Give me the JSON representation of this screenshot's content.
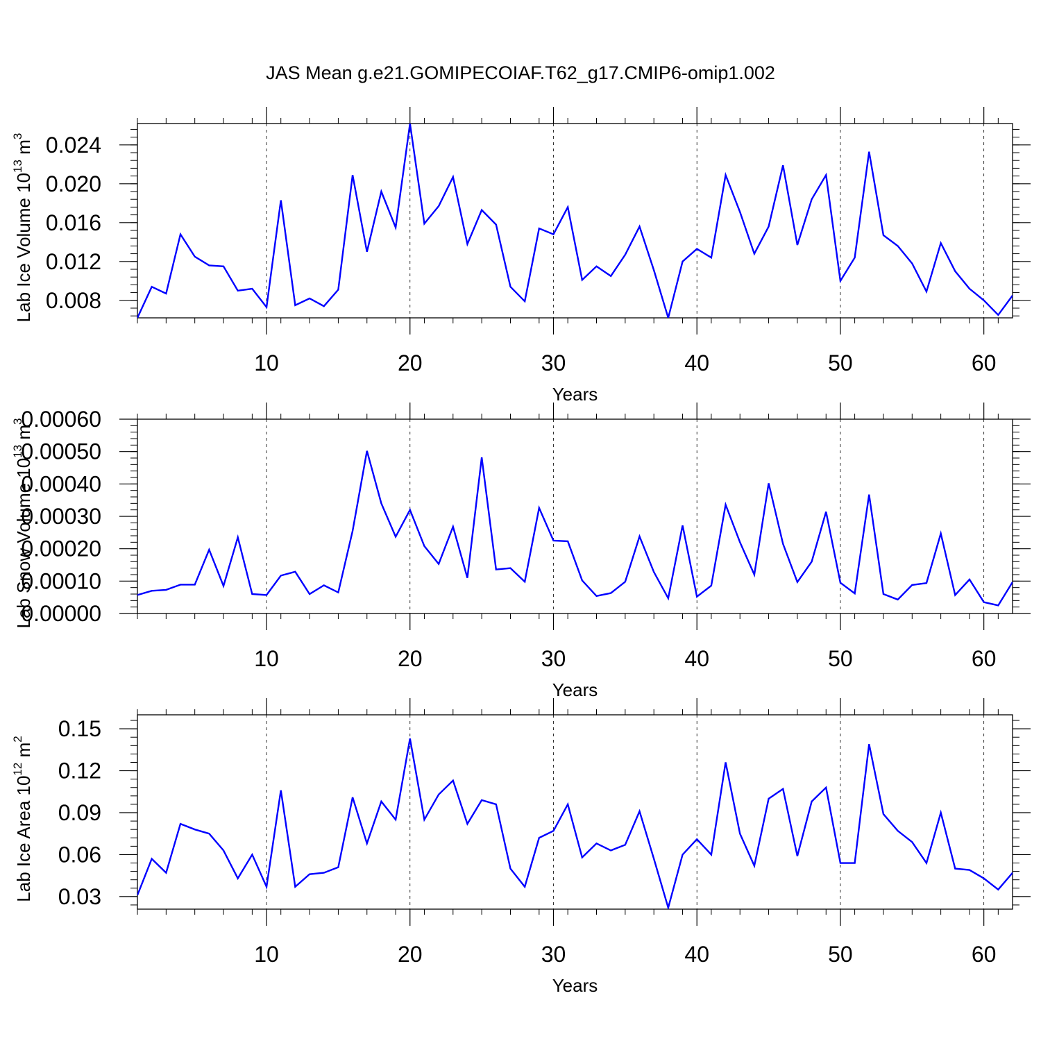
{
  "title": "JAS Mean g.e21.GOMIPECOIAF.T62_g17.CMIP6-omip1.002",
  "line_color": "#0000ff",
  "chart_data": [
    {
      "type": "line",
      "title": "JAS Mean g.e21.GOMIPECOIAF.T62_g17.CMIP6-omip1.002",
      "xlabel": "Years",
      "ylabel": {
        "main": "Lab Ice Volume 10",
        "exp": "13",
        "unit": " m",
        "unit_exp": "3"
      },
      "xlim": [
        1,
        62
      ],
      "ylim": [
        0.0062,
        0.0262
      ],
      "xticks": [
        10,
        20,
        30,
        40,
        50,
        60
      ],
      "xtick_labels": [
        "10",
        "20",
        "30",
        "40",
        "50",
        "60"
      ],
      "yticks": [
        0.008,
        0.012,
        0.016,
        0.02,
        0.024
      ],
      "ytick_labels": [
        "0.008",
        "0.012",
        "0.016",
        "0.020",
        "0.024"
      ],
      "yminor_step": 0.0008,
      "grid": "vertical dashed at major x ticks",
      "x": [
        1,
        2,
        3,
        4,
        5,
        6,
        7,
        8,
        9,
        10,
        11,
        12,
        13,
        14,
        15,
        16,
        17,
        18,
        19,
        20,
        21,
        22,
        23,
        24,
        25,
        26,
        27,
        28,
        29,
        30,
        31,
        32,
        33,
        34,
        35,
        36,
        37,
        38,
        39,
        40,
        41,
        42,
        43,
        44,
        45,
        46,
        47,
        48,
        49,
        50,
        51,
        52,
        53,
        54,
        55,
        56,
        57,
        58,
        59,
        60,
        61,
        62
      ],
      "series": [
        {
          "name": "Lab Ice Volume",
          "values": [
            0.0062,
            0.0094,
            0.0087,
            0.0148,
            0.0125,
            0.0116,
            0.0115,
            0.009,
            0.0092,
            0.0073,
            0.0183,
            0.0075,
            0.0082,
            0.0074,
            0.0091,
            0.0209,
            0.013,
            0.0192,
            0.0155,
            0.0262,
            0.0159,
            0.0177,
            0.0207,
            0.0138,
            0.0173,
            0.0158,
            0.0094,
            0.0079,
            0.0154,
            0.0148,
            0.0176,
            0.0101,
            0.0115,
            0.0105,
            0.0127,
            0.0156,
            0.0111,
            0.0062,
            0.012,
            0.0133,
            0.0124,
            0.0209,
            0.0171,
            0.0128,
            0.0156,
            0.0219,
            0.0137,
            0.0184,
            0.0209,
            0.01,
            0.0124,
            0.0233,
            0.0147,
            0.0136,
            0.0118,
            0.0089,
            0.0139,
            0.011,
            0.0092,
            0.008,
            0.0065,
            0.0085
          ]
        }
      ]
    },
    {
      "type": "line",
      "title": "",
      "xlabel": "Years",
      "ylabel": {
        "main": "Lab Snow Volume 10",
        "exp": "13",
        "unit": " m",
        "unit_exp": "3"
      },
      "xlim": [
        1,
        62
      ],
      "ylim": [
        0.0,
        0.0006
      ],
      "xticks": [
        10,
        20,
        30,
        40,
        50,
        60
      ],
      "xtick_labels": [
        "10",
        "20",
        "30",
        "40",
        "50",
        "60"
      ],
      "yticks": [
        0.0,
        0.0001,
        0.0002,
        0.0003,
        0.0004,
        0.0005,
        0.0006
      ],
      "ytick_labels": [
        "0.00000",
        "0.00010",
        "0.00020",
        "0.00030",
        "0.00040",
        "0.00050",
        "0.00060"
      ],
      "yminor_step": 2e-05,
      "grid": "vertical dashed at major x ticks",
      "x": [
        1,
        2,
        3,
        4,
        5,
        6,
        7,
        8,
        9,
        10,
        11,
        12,
        13,
        14,
        15,
        16,
        17,
        18,
        19,
        20,
        21,
        22,
        23,
        24,
        25,
        26,
        27,
        28,
        29,
        30,
        31,
        32,
        33,
        34,
        35,
        36,
        37,
        38,
        39,
        40,
        41,
        42,
        43,
        44,
        45,
        46,
        47,
        48,
        49,
        50,
        51,
        52,
        53,
        54,
        55,
        56,
        57,
        58,
        59,
        60,
        61,
        62
      ],
      "series": [
        {
          "name": "Lab Snow Volume",
          "values": [
            5.7e-05,
            7e-05,
            7.3e-05,
            8.9e-05,
            8.9e-05,
            0.000197,
            8.5e-05,
            0.000235,
            6e-05,
            5.7e-05,
            0.000117,
            0.000129,
            6e-05,
            8.7e-05,
            6.5e-05,
            0.000255,
            0.000502,
            0.00034,
            0.000237,
            0.00032,
            0.000208,
            0.000153,
            0.000268,
            0.00011,
            0.000482,
            0.000136,
            0.00014,
            9.8e-05,
            0.000326,
            0.000225,
            0.000223,
            0.000102,
            5.4e-05,
            6.3e-05,
            9.8e-05,
            0.000238,
            0.000128,
            4.7e-05,
            0.000272,
            5.2e-05,
            8.6e-05,
            0.000336,
            0.00022,
            0.00012,
            0.000402,
            0.000215,
            9.7e-05,
            0.00016,
            0.000314,
            9.5e-05,
            6.2e-05,
            0.000367,
            6e-05,
            4.3e-05,
            8.8e-05,
            9.4e-05,
            0.000247,
            5.7e-05,
            0.000105,
            3.5e-05,
            2.5e-05,
            9.7e-05
          ]
        }
      ]
    },
    {
      "type": "line",
      "title": "",
      "xlabel": "Years",
      "ylabel": {
        "main": "Lab Ice Area 10",
        "exp": "12",
        "unit": " m",
        "unit_exp": "2"
      },
      "xlim": [
        1,
        62
      ],
      "ylim": [
        0.021,
        0.16
      ],
      "xticks": [
        10,
        20,
        30,
        40,
        50,
        60
      ],
      "xtick_labels": [
        "10",
        "20",
        "30",
        "40",
        "50",
        "60"
      ],
      "yticks": [
        0.03,
        0.06,
        0.09,
        0.12,
        0.15
      ],
      "ytick_labels": [
        "0.03",
        "0.06",
        "0.09",
        "0.12",
        "0.15"
      ],
      "yminor_step": 0.006,
      "grid": "vertical dashed at major x ticks",
      "x": [
        1,
        2,
        3,
        4,
        5,
        6,
        7,
        8,
        9,
        10,
        11,
        12,
        13,
        14,
        15,
        16,
        17,
        18,
        19,
        20,
        21,
        22,
        23,
        24,
        25,
        26,
        27,
        28,
        29,
        30,
        31,
        32,
        33,
        34,
        35,
        36,
        37,
        38,
        39,
        40,
        41,
        42,
        43,
        44,
        45,
        46,
        47,
        48,
        49,
        50,
        51,
        52,
        53,
        54,
        55,
        56,
        57,
        58,
        59,
        60,
        61,
        62
      ],
      "series": [
        {
          "name": "Lab Ice Area",
          "values": [
            0.031,
            0.057,
            0.047,
            0.082,
            0.078,
            0.075,
            0.063,
            0.043,
            0.06,
            0.037,
            0.106,
            0.037,
            0.046,
            0.047,
            0.051,
            0.101,
            0.068,
            0.098,
            0.085,
            0.143,
            0.085,
            0.103,
            0.113,
            0.082,
            0.099,
            0.096,
            0.05,
            0.037,
            0.072,
            0.077,
            0.096,
            0.058,
            0.068,
            0.063,
            0.067,
            0.091,
            0.057,
            0.022,
            0.06,
            0.071,
            0.06,
            0.126,
            0.075,
            0.052,
            0.1,
            0.107,
            0.059,
            0.098,
            0.108,
            0.054,
            0.054,
            0.139,
            0.089,
            0.077,
            0.069,
            0.054,
            0.09,
            0.05,
            0.049,
            0.043,
            0.035,
            0.047
          ]
        }
      ]
    }
  ]
}
